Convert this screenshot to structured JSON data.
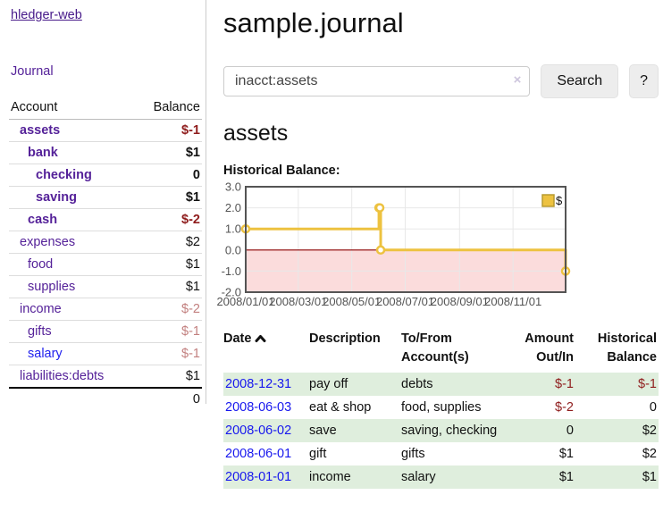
{
  "brand": "hledger-web",
  "nav": {
    "journal": "Journal"
  },
  "sidebar": {
    "col_account": "Account",
    "col_balance": "Balance",
    "accounts": [
      {
        "name": "assets",
        "balance": "$-1"
      },
      {
        "name": "bank",
        "balance": "$1"
      },
      {
        "name": "checking",
        "balance": "0"
      },
      {
        "name": "saving",
        "balance": "$1"
      },
      {
        "name": "cash",
        "balance": "$-2"
      },
      {
        "name": "expenses",
        "balance": "$2"
      },
      {
        "name": "food",
        "balance": "$1"
      },
      {
        "name": "supplies",
        "balance": "$1"
      },
      {
        "name": "income",
        "balance": "$-2"
      },
      {
        "name": "gifts",
        "balance": "$-1"
      },
      {
        "name": "salary",
        "balance": "$-1"
      },
      {
        "name": "liabilities:debts",
        "balance": "$1"
      }
    ],
    "total": "0"
  },
  "main": {
    "title": "sample.journal",
    "search": {
      "value": "inacct:assets",
      "clear": "×",
      "search_button": "Search",
      "help_button": "?"
    },
    "section_title": "assets",
    "chart_heading": "Historical Balance:"
  },
  "chart_data": {
    "type": "line",
    "title": "Historical Balance",
    "step": true,
    "series": [
      {
        "name": "$",
        "color": "#EDC240",
        "points": [
          [
            "2008-01-01",
            1
          ],
          [
            "2008-06-01",
            2
          ],
          [
            "2008-06-02",
            2
          ],
          [
            "2008-06-03",
            0
          ],
          [
            "2008-12-31",
            -1
          ]
        ]
      }
    ],
    "x_range": [
      "2008-01-01",
      "2008-12-31"
    ],
    "x_ticks": [
      {
        "label": "2008/01/01",
        "date": "2008-01-01"
      },
      {
        "label": "2008/03/01",
        "date": "2008-03-01"
      },
      {
        "label": "2008/05/01",
        "date": "2008-05-01"
      },
      {
        "label": "2008/07/01",
        "date": "2008-07-01"
      },
      {
        "label": "2008/09/01",
        "date": "2008-09-01"
      },
      {
        "label": "2008/11/01",
        "date": "2008-11-01"
      }
    ],
    "y_ticks": [
      3.0,
      2.0,
      1.0,
      0.0,
      -1.0,
      -2.0
    ],
    "ylim": [
      -2,
      3
    ],
    "legend": "$",
    "legend_position": "top-right",
    "grid": true,
    "grid_color": "#e8e8e8",
    "border_color": "#545454",
    "tick_label_color": "#545454",
    "zero_line_color": "#8b0000",
    "negative_region_color": "#fbdcdc",
    "marker_fill": "#ffffff"
  },
  "register": {
    "col_date": "Date",
    "col_description": "Description",
    "col_account": "To/From Account(s)",
    "col_amount": "Amount Out/In",
    "col_balance": "Historical Balance",
    "rows": [
      {
        "date": "2008-12-31",
        "description": "pay off",
        "account": "debts",
        "amount": "$-1",
        "balance": "$-1"
      },
      {
        "date": "2008-06-03",
        "description": "eat & shop",
        "account": "food, supplies",
        "amount": "$-2",
        "balance": "0"
      },
      {
        "date": "2008-06-02",
        "description": "save",
        "account": "saving, checking",
        "amount": "0",
        "balance": "$2"
      },
      {
        "date": "2008-06-01",
        "description": "gift",
        "account": "gifts",
        "amount": "$1",
        "balance": "$2"
      },
      {
        "date": "2008-01-01",
        "description": "income",
        "account": "salary",
        "amount": "$1",
        "balance": "$1"
      }
    ]
  }
}
